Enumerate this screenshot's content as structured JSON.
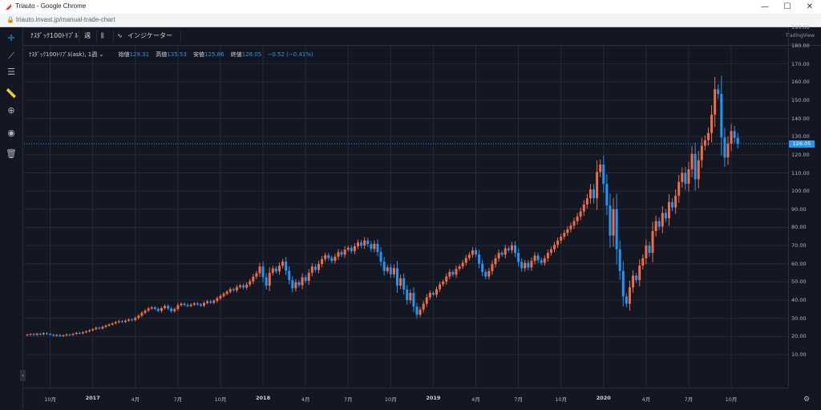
{
  "browser": {
    "tab_title": "Triauto - Google Chrome",
    "url": "triauto.invast.jp/manual-trade-chart",
    "minimize": "—",
    "maximize": "☐",
    "close": "✕"
  },
  "toolbar": {
    "symbol": "ﾅｽﾀﾞｯｸ100ﾄﾘﾌﾟﾙ",
    "interval": "週",
    "indicators": "インジケーター",
    "brand": "TradingView"
  },
  "left_tools": [
    "crosshair-icon",
    "trendline-icon",
    "fib-icon",
    "ruler-icon",
    "zoom-icon",
    "eye-icon",
    "trash-icon"
  ],
  "legend": {
    "symbol_line": "ﾅｽﾀﾞｯｸ100ﾄﾘﾌﾟﾙ(ask), 1週",
    "open_label": "始値",
    "open": "129.31",
    "high_label": "高値",
    "high": "135.53",
    "low_label": "安値",
    "low": "125.86",
    "close_label": "終値",
    "close": "126.05",
    "change": "−0.52 (−0.41%)"
  },
  "current_price": "126.05",
  "colors": {
    "up": "#ef6c45",
    "down": "#2196f3",
    "grid": "#242a37",
    "bg": "#131722"
  },
  "chart_data": {
    "type": "candlestick",
    "ylim": [
      0,
      195
    ],
    "y_ticks": [
      "10.00",
      "20.00",
      "30.00",
      "40.00",
      "50.00",
      "60.00",
      "70.00",
      "80.00",
      "90.00",
      "100.00",
      "110.00",
      "120.00",
      "130.00",
      "140.00",
      "150.00",
      "160.00",
      "170.00",
      "180.00",
      "190.00"
    ],
    "x_ticks": [
      {
        "label": "10月",
        "bold": false,
        "i": 7
      },
      {
        "label": "2017",
        "bold": true,
        "i": 20
      },
      {
        "label": "4月",
        "bold": false,
        "i": 33
      },
      {
        "label": "7月",
        "bold": false,
        "i": 46
      },
      {
        "label": "10月",
        "bold": false,
        "i": 59
      },
      {
        "label": "2018",
        "bold": true,
        "i": 72
      },
      {
        "label": "4月",
        "bold": false,
        "i": 85
      },
      {
        "label": "7月",
        "bold": false,
        "i": 98
      },
      {
        "label": "10月",
        "bold": false,
        "i": 111
      },
      {
        "label": "2019",
        "bold": true,
        "i": 124
      },
      {
        "label": "4月",
        "bold": false,
        "i": 137
      },
      {
        "label": "7月",
        "bold": false,
        "i": 150
      },
      {
        "label": "10月",
        "bold": false,
        "i": 163
      },
      {
        "label": "2020",
        "bold": true,
        "i": 176
      },
      {
        "label": "4月",
        "bold": false,
        "i": 189
      },
      {
        "label": "7月",
        "bold": false,
        "i": 202
      },
      {
        "label": "10月",
        "bold": false,
        "i": 215
      }
    ],
    "closes": [
      21.0,
      21.3,
      20.9,
      21.5,
      21.2,
      21.8,
      21.4,
      21.0,
      20.5,
      20.8,
      20.2,
      20.6,
      21.1,
      20.9,
      21.4,
      22.0,
      21.7,
      22.3,
      22.8,
      23.4,
      24.0,
      24.8,
      24.4,
      25.3,
      26.0,
      26.6,
      27.2,
      27.9,
      28.4,
      28.0,
      28.7,
      29.3,
      29.0,
      30.2,
      31.5,
      33.0,
      34.2,
      35.4,
      36.0,
      35.2,
      34.1,
      35.6,
      36.8,
      35.4,
      33.9,
      35.1,
      37.2,
      38.0,
      37.4,
      36.8,
      37.5,
      38.2,
      37.6,
      37.0,
      38.4,
      39.3,
      38.6,
      39.6,
      41.0,
      42.3,
      43.5,
      44.6,
      46.0,
      45.4,
      47.2,
      48.1,
      46.9,
      48.6,
      50.4,
      52.9,
      54.8,
      58.5,
      52.6,
      48.0,
      55.0,
      57.4,
      55.8,
      58.9,
      61.2,
      56.2,
      51.0,
      46.5,
      49.8,
      48.2,
      52.6,
      50.6,
      55.0,
      58.5,
      56.6,
      59.9,
      62.6,
      64.7,
      63.2,
      61.6,
      63.9,
      66.4,
      65.0,
      67.8,
      68.8,
      67.0,
      69.6,
      71.7,
      70.0,
      72.8,
      70.8,
      68.2,
      71.0,
      66.5,
      61.2,
      56.0,
      58.0,
      54.2,
      57.6,
      48.0,
      52.0,
      45.8,
      40.0,
      44.0,
      36.5,
      32.0,
      34.8,
      38.0,
      41.5,
      44.0,
      43.0,
      46.0,
      48.7,
      50.2,
      53.0,
      55.5,
      54.0,
      57.2,
      58.5,
      60.6,
      63.2,
      65.0,
      67.4,
      65.2,
      60.0,
      55.5,
      53.0,
      56.0,
      59.8,
      63.0,
      66.0,
      65.0,
      68.5,
      67.5,
      70.2,
      66.0,
      61.0,
      57.5,
      60.5,
      58.0,
      61.5,
      64.5,
      62.0,
      60.5,
      63.0,
      66.0,
      68.0,
      70.4,
      72.8,
      74.9,
      77.0,
      79.0,
      81.0,
      83.5,
      86.0,
      88.8,
      92.6,
      96.0,
      101.0,
      96.0,
      110.5,
      114.6,
      104.0,
      92.0,
      75.5,
      90.0,
      68.0,
      56.0,
      42.0,
      38.0,
      47.0,
      53.5,
      51.0,
      59.0,
      63.0,
      70.0,
      66.0,
      78.0,
      83.5,
      80.5,
      88.0,
      85.0,
      94.0,
      91.0,
      97.5,
      105.0,
      110.0,
      104.0,
      112.0,
      120.5,
      106.5,
      117.0,
      125.0,
      128.0,
      132.0,
      142.0,
      156.0,
      153.5,
      129.5,
      118.5,
      126.0,
      133.0,
      129.31,
      126.05
    ]
  }
}
